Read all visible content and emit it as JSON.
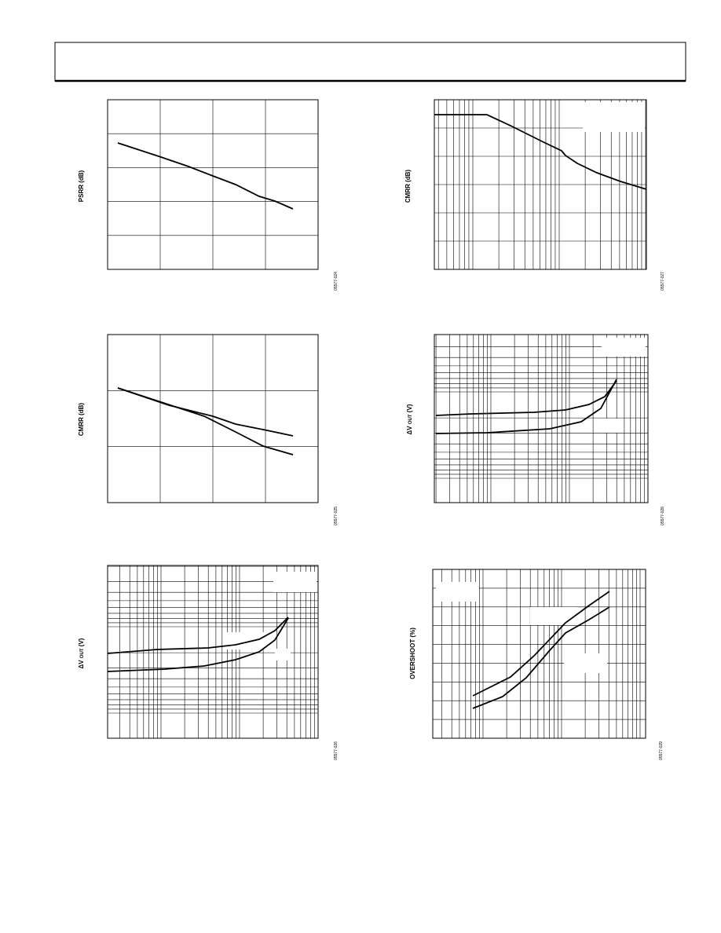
{
  "figures": [
    {
      "y_label": "PSRR (dB)",
      "figure_id": "05577-024"
    },
    {
      "y_label": "CMRR (dB)",
      "figure_id": "05577-027"
    },
    {
      "y_label": "CMRR (dB)",
      "figure_id": "05577-025"
    },
    {
      "y_label": {
        "symbol": "ΔV",
        "sub": "OUT",
        "unit": "(V)"
      },
      "figure_id": "05577-028"
    },
    {
      "y_label": {
        "symbol": "ΔV",
        "sub": "OUT",
        "unit": "(V)"
      },
      "figure_id": "05577-026"
    },
    {
      "y_label": "OVERSHOOT (%)",
      "figure_id": "05577-029"
    }
  ]
}
